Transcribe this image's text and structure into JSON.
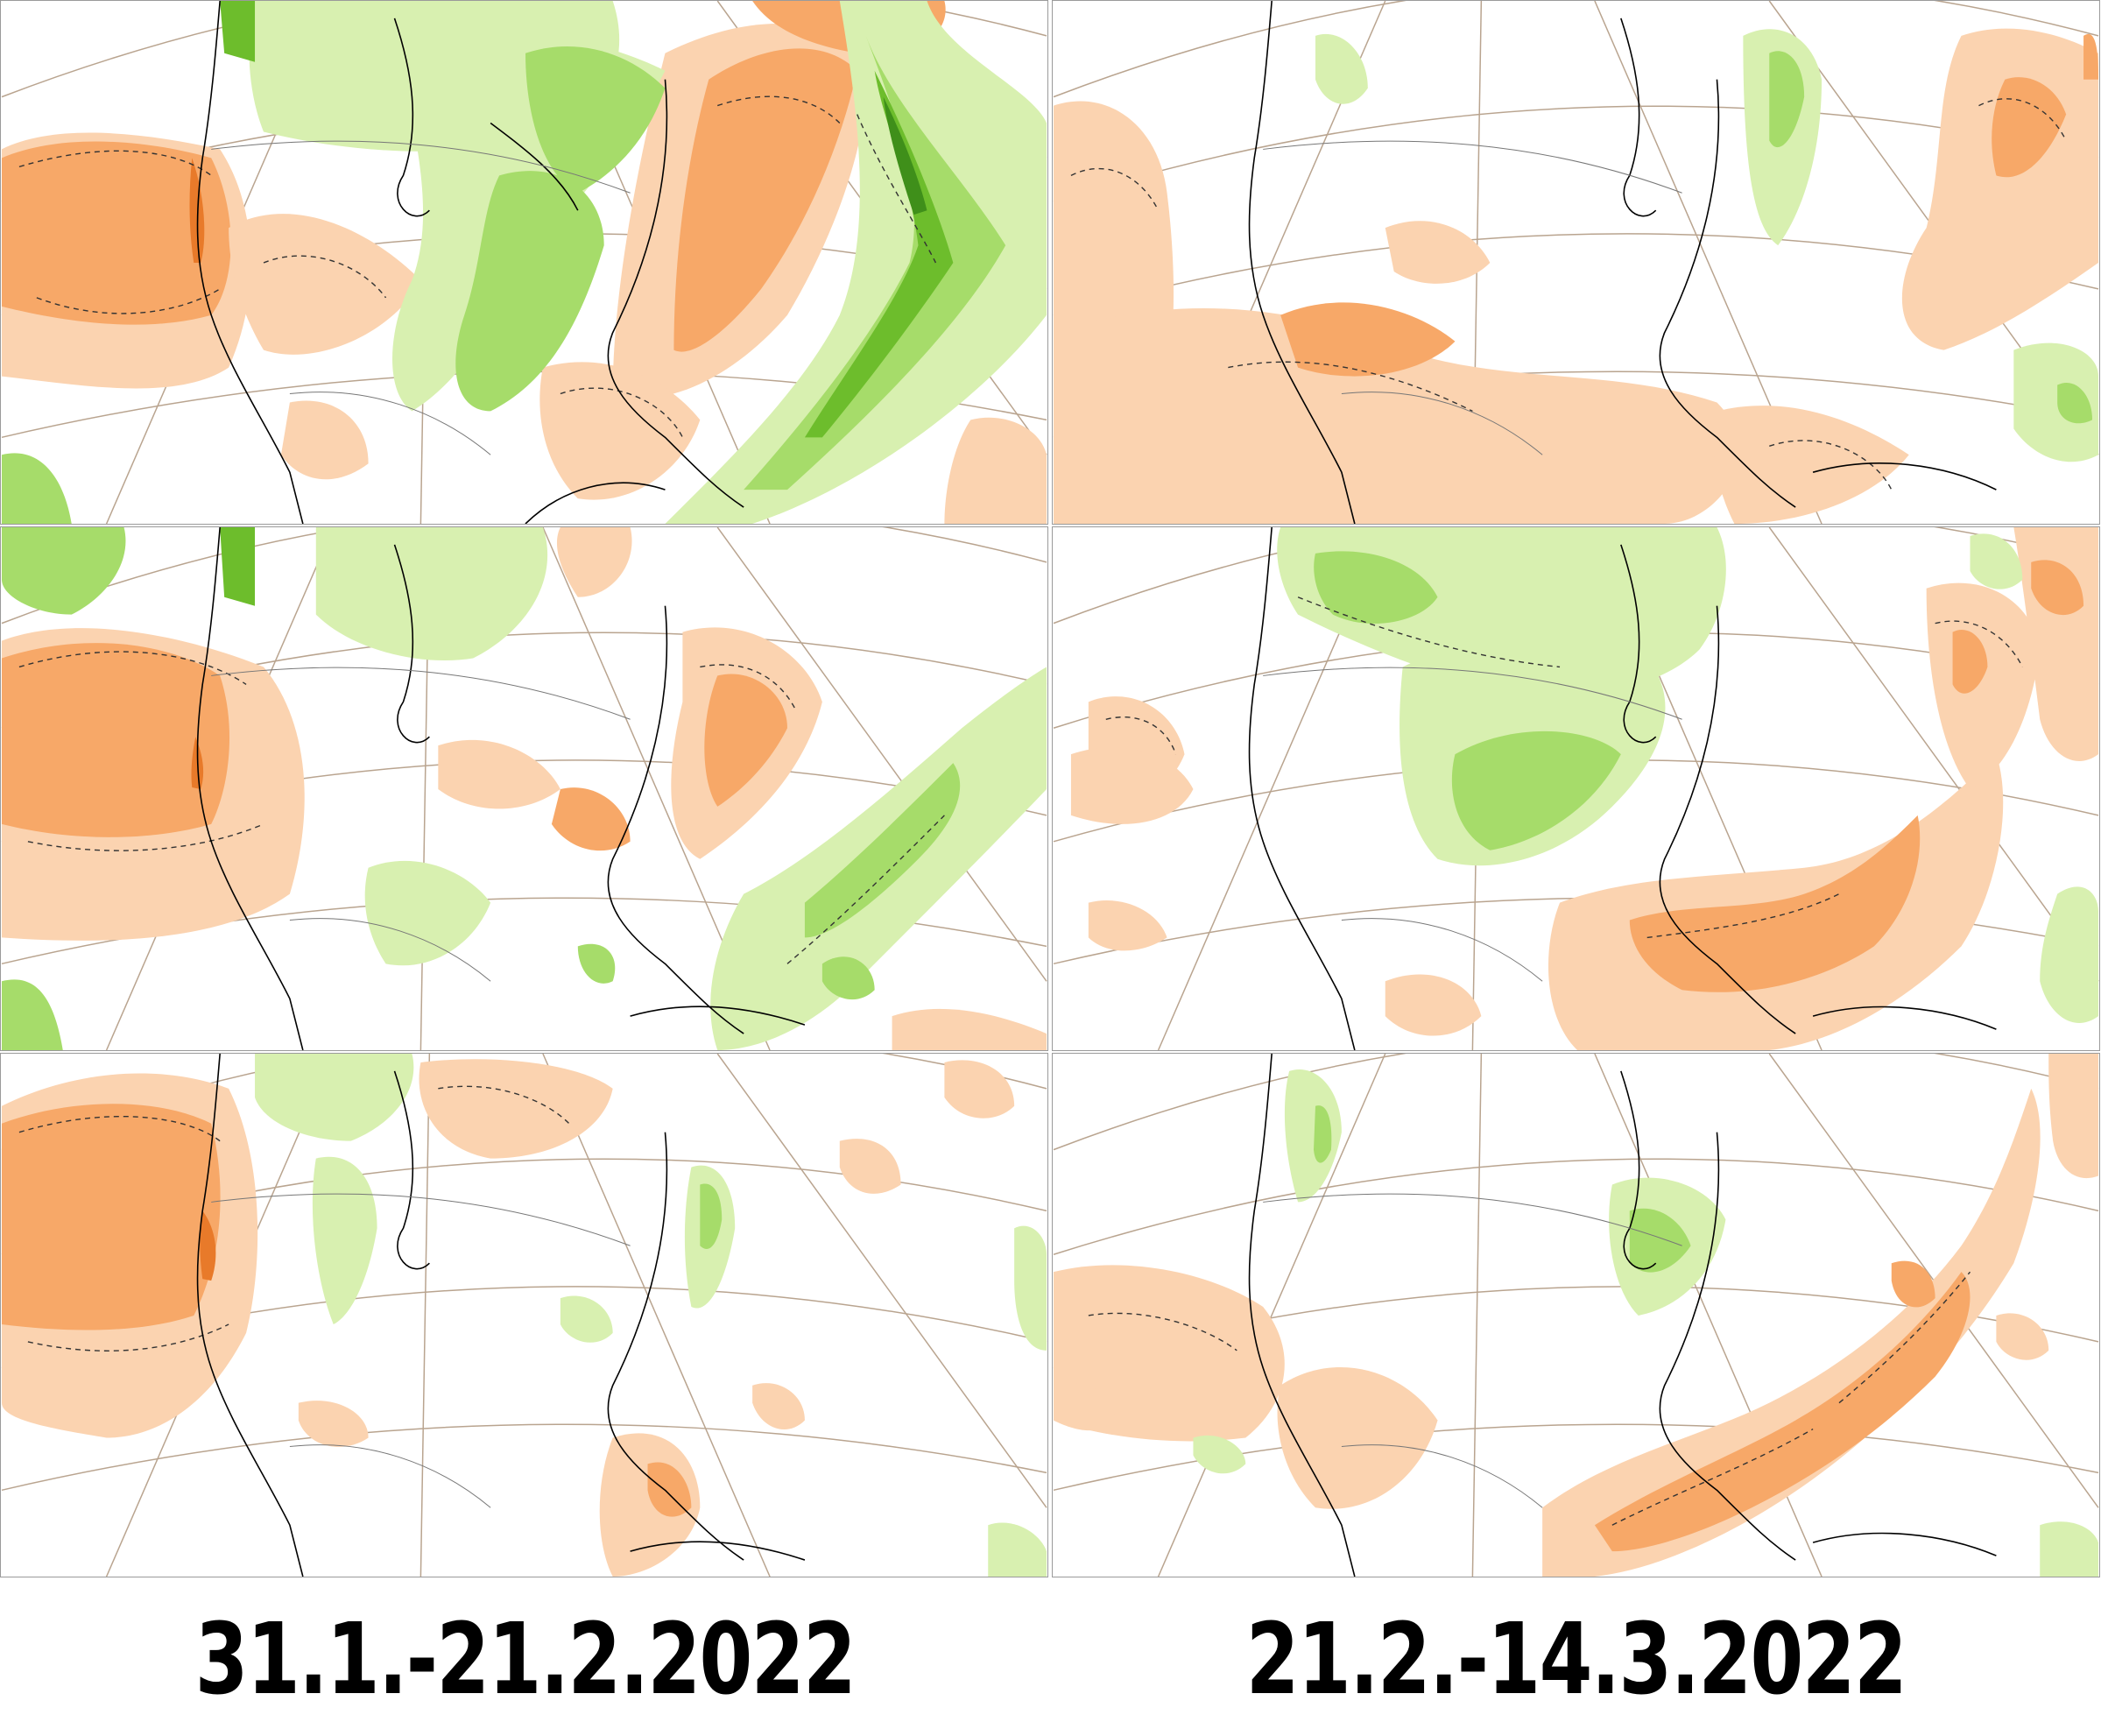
{
  "colors": {
    "background": "#ffffff",
    "dry_light": "#fbd3b0",
    "dry_mid": "#f7a868",
    "dry_dark": "#e87a2a",
    "wet_light": "#d8f0b0",
    "wet_mid": "#a6dc6a",
    "wet_dark": "#6dbd2c",
    "wet_deepest": "#3f8f1a",
    "graticule": "#b9a48f",
    "coastline": "#000000",
    "contour": "#333333"
  },
  "panels": [
    {
      "period": "31.1.-21.2.2022",
      "row": 1,
      "column": 1
    },
    {
      "period": "21.2.-14.3.2022",
      "row": 1,
      "column": 2
    },
    {
      "period": "31.1.-21.2.2022",
      "row": 2,
      "column": 1
    },
    {
      "period": "21.2.-14.3.2022",
      "row": 2,
      "column": 2
    },
    {
      "period": "31.1.-21.2.2022",
      "row": 3,
      "column": 1
    },
    {
      "period": "21.2.-14.3.2022",
      "row": 3,
      "column": 2
    }
  ],
  "captions": {
    "left": "31.1.-21.2.2022",
    "right": "21.2.-14.3.2022"
  }
}
